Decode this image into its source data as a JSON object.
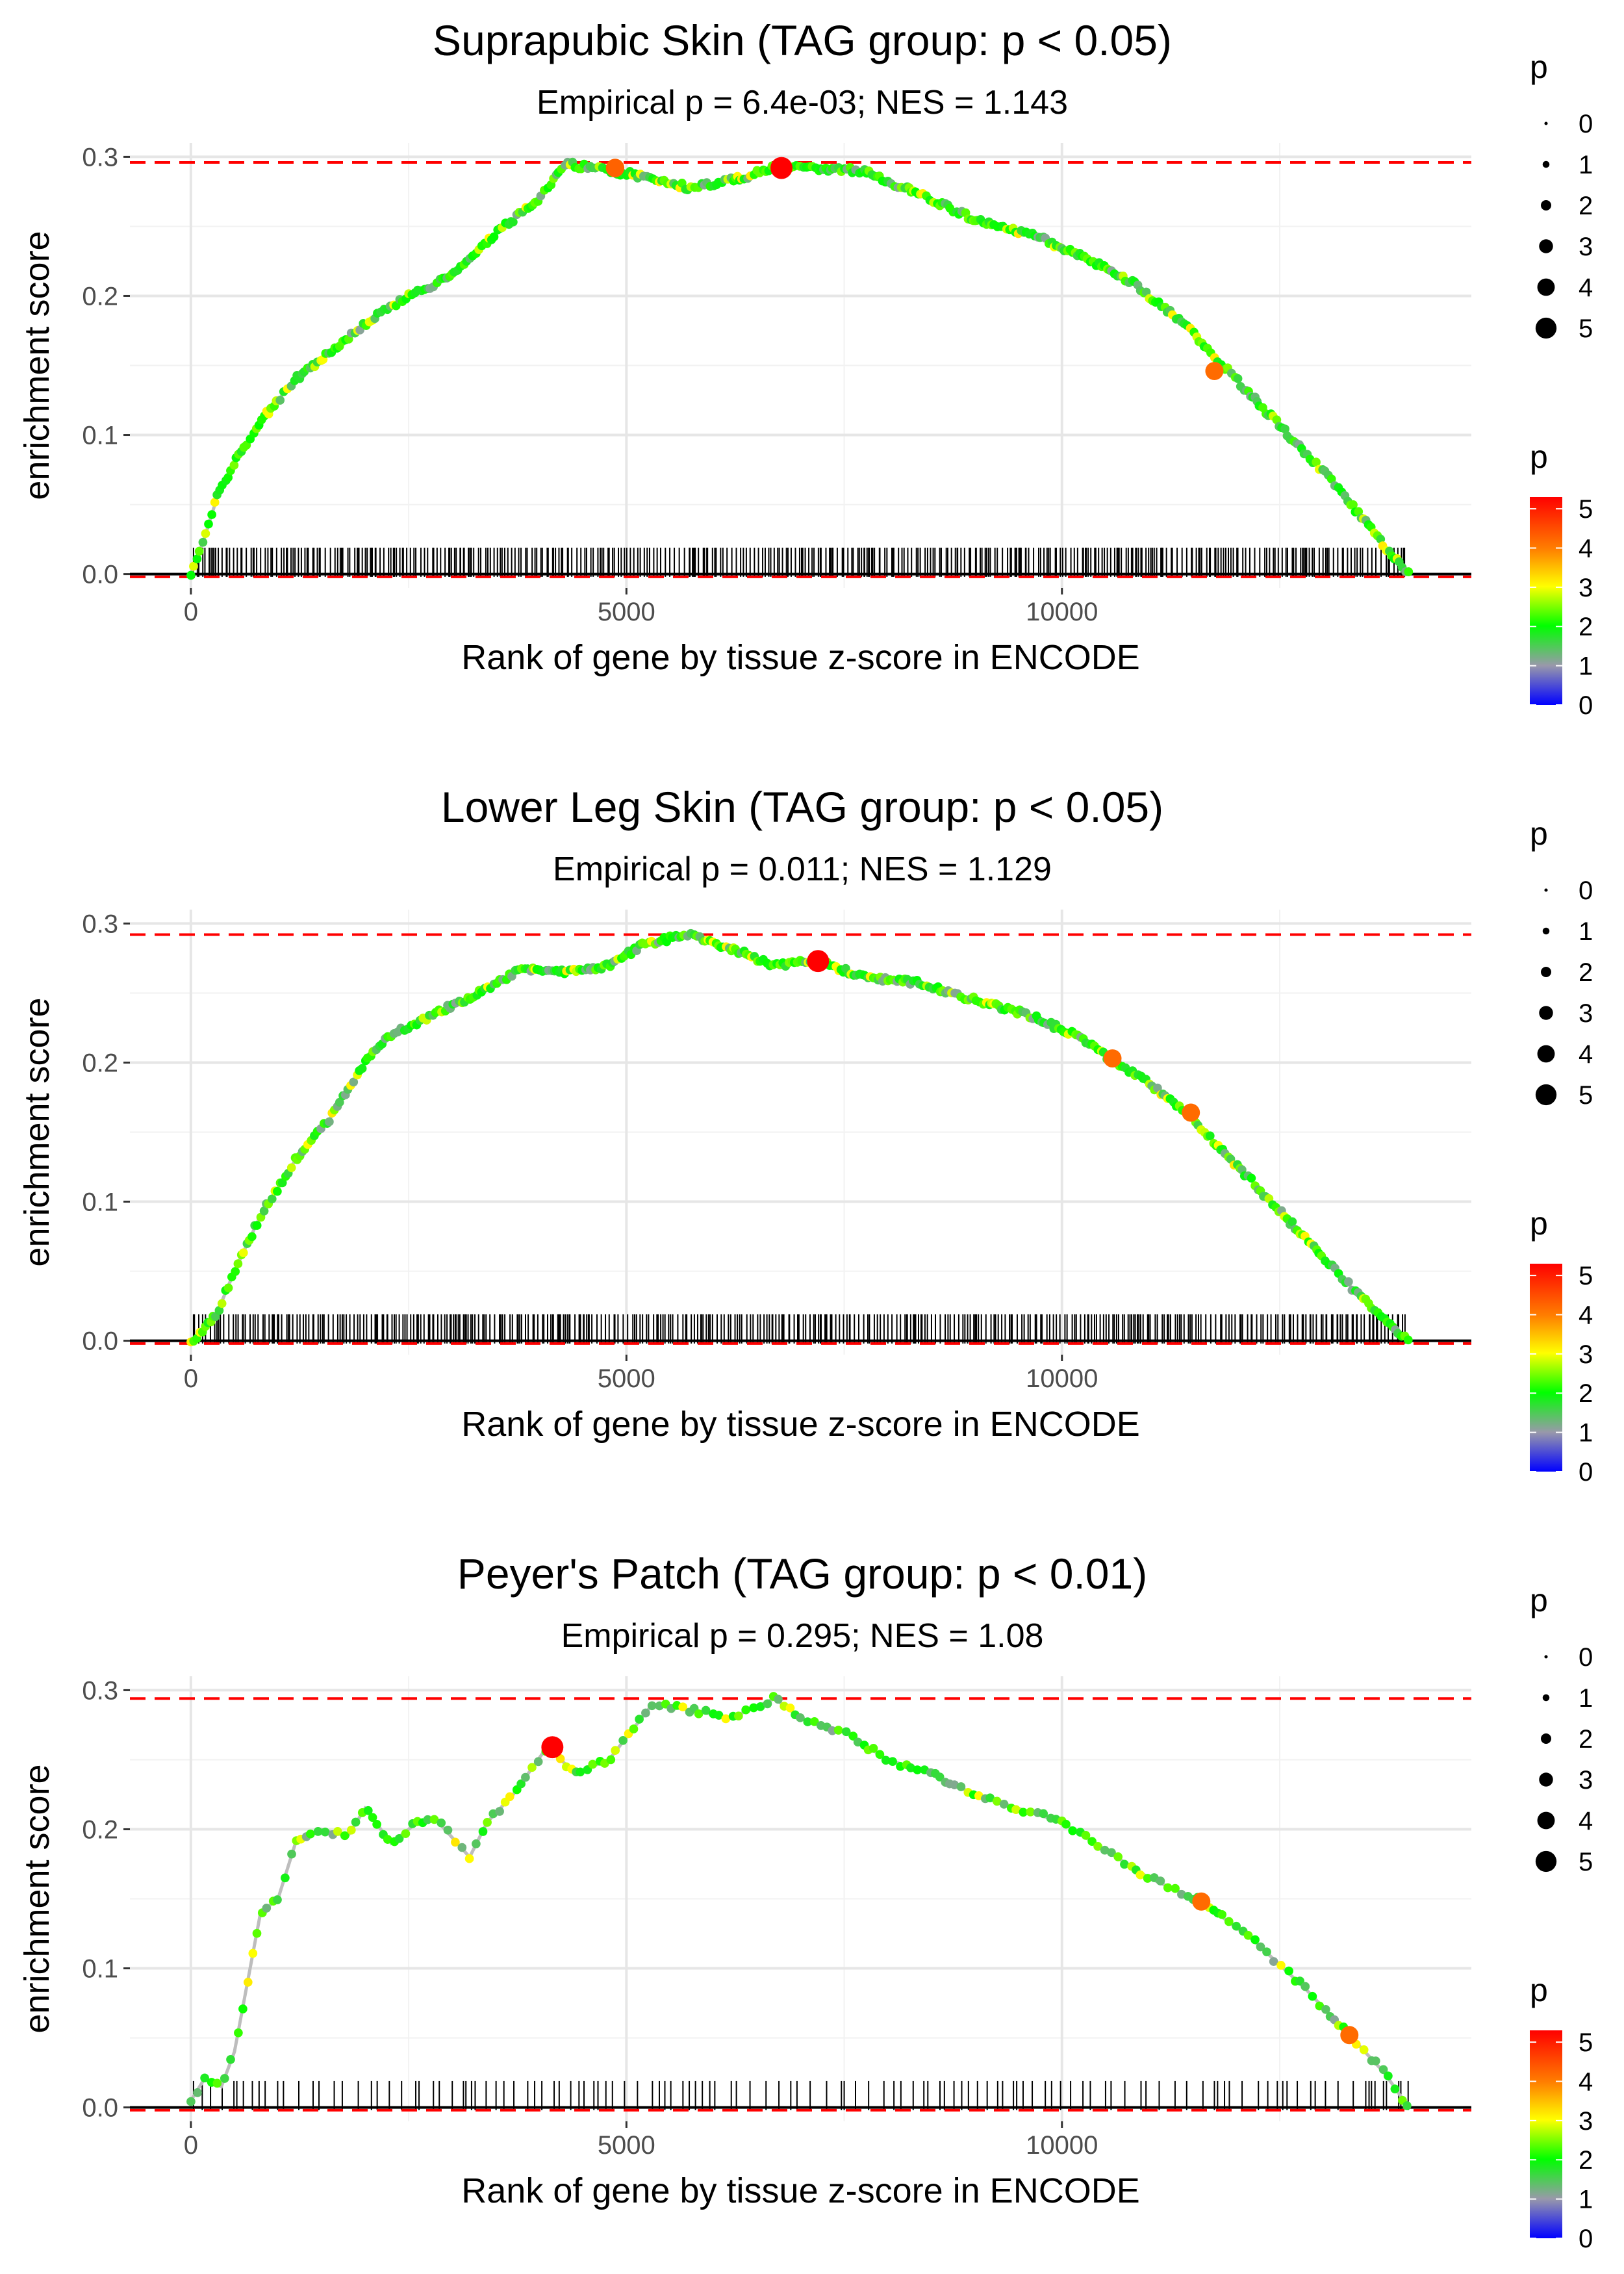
{
  "chart_data": [
    {
      "type": "line",
      "title": "Suprapubic Skin (TAG group: p < 0.05)",
      "subtitle": "Empirical p = 6.4e-03; NES = 1.143",
      "xlabel": "Rank of gene by tissue z-score in ENCODE",
      "ylabel": "enrichment score",
      "xlim": [
        -700,
        14700
      ],
      "ylim": [
        -0.01,
        0.31
      ],
      "xticks": [
        0,
        5000,
        10000
      ],
      "xtick_labels": [
        "0",
        "5000",
        "10000"
      ],
      "yticks": [
        0.0,
        0.1,
        0.2,
        0.3
      ],
      "ytick_labels": [
        "0.0",
        "0.1",
        "0.2",
        "0.3"
      ],
      "max_es": 0.296,
      "min_es": -0.002,
      "gene_count": 13980,
      "hit_density": "dense",
      "curve": [
        [
          0,
          0
        ],
        [
          150,
          0.025
        ],
        [
          300,
          0.055
        ],
        [
          500,
          0.08
        ],
        [
          800,
          0.11
        ],
        [
          1200,
          0.14
        ],
        [
          1600,
          0.16
        ],
        [
          2000,
          0.18
        ],
        [
          2500,
          0.2
        ],
        [
          3000,
          0.215
        ],
        [
          3500,
          0.245
        ],
        [
          4000,
          0.27
        ],
        [
          4300,
          0.295
        ],
        [
          4800,
          0.29
        ],
        [
          5300,
          0.285
        ],
        [
          5700,
          0.278
        ],
        [
          6200,
          0.283
        ],
        [
          6700,
          0.292
        ],
        [
          7200,
          0.292
        ],
        [
          7700,
          0.29
        ],
        [
          8300,
          0.275
        ],
        [
          9000,
          0.255
        ],
        [
          9600,
          0.245
        ],
        [
          10200,
          0.23
        ],
        [
          10800,
          0.21
        ],
        [
          11400,
          0.18
        ],
        [
          12000,
          0.14
        ],
        [
          12600,
          0.1
        ],
        [
          13200,
          0.06
        ],
        [
          13700,
          0.02
        ],
        [
          13980,
          0
        ]
      ],
      "highlighted_points": [
        {
          "x": 4870,
          "y": 0.292,
          "p": 4.3
        },
        {
          "x": 6780,
          "y": 0.292,
          "p": 5.3
        },
        {
          "x": 11750,
          "y": 0.146,
          "p": 4.2
        }
      ],
      "legend_size": {
        "title": "p",
        "labels": [
          "0",
          "1",
          "2",
          "3",
          "4",
          "5"
        ]
      },
      "legend_color": {
        "title": "p",
        "labels": [
          "0",
          "1",
          "2",
          "3",
          "4",
          "5"
        ],
        "colors": [
          "#0000ff",
          "#9999aa",
          "#00ff00",
          "#ffff00",
          "#ff7f00",
          "#ff0000"
        ]
      }
    },
    {
      "type": "line",
      "title": "Lower Leg Skin (TAG group: p < 0.05)",
      "subtitle": "Empirical p = 0.011; NES = 1.129",
      "xlabel": "Rank of gene by tissue z-score in ENCODE",
      "ylabel": "enrichment score",
      "xlim": [
        -700,
        14700
      ],
      "ylim": [
        -0.01,
        0.31
      ],
      "xticks": [
        0,
        5000,
        10000
      ],
      "xtick_labels": [
        "0",
        "5000",
        "10000"
      ],
      "yticks": [
        0.0,
        0.1,
        0.2,
        0.3
      ],
      "ytick_labels": [
        "0.0",
        "0.1",
        "0.2",
        "0.3"
      ],
      "max_es": 0.292,
      "min_es": -0.002,
      "gene_count": 13980,
      "hit_density": "dense",
      "curve": [
        [
          0,
          0
        ],
        [
          100,
          0.005
        ],
        [
          300,
          0.02
        ],
        [
          500,
          0.05
        ],
        [
          800,
          0.09
        ],
        [
          1200,
          0.13
        ],
        [
          1600,
          0.16
        ],
        [
          2000,
          0.2
        ],
        [
          2300,
          0.22
        ],
        [
          2800,
          0.235
        ],
        [
          3300,
          0.25
        ],
        [
          3800,
          0.268
        ],
        [
          4300,
          0.265
        ],
        [
          4800,
          0.27
        ],
        [
          5200,
          0.285
        ],
        [
          5700,
          0.292
        ],
        [
          6200,
          0.282
        ],
        [
          6700,
          0.27
        ],
        [
          7200,
          0.273
        ],
        [
          7700,
          0.262
        ],
        [
          8300,
          0.258
        ],
        [
          9000,
          0.245
        ],
        [
          9600,
          0.235
        ],
        [
          10200,
          0.218
        ],
        [
          10600,
          0.2
        ],
        [
          11000,
          0.185
        ],
        [
          11500,
          0.16
        ],
        [
          12100,
          0.12
        ],
        [
          12700,
          0.08
        ],
        [
          13300,
          0.04
        ],
        [
          13800,
          0.01
        ],
        [
          13980,
          0
        ]
      ],
      "highlighted_points": [
        {
          "x": 7200,
          "y": 0.273,
          "p": 5.3
        },
        {
          "x": 10580,
          "y": 0.203,
          "p": 4.2
        },
        {
          "x": 11480,
          "y": 0.164,
          "p": 4.2
        }
      ],
      "legend_size": {
        "title": "p",
        "labels": [
          "0",
          "1",
          "2",
          "3",
          "4",
          "5"
        ]
      },
      "legend_color": {
        "title": "p",
        "labels": [
          "0",
          "1",
          "2",
          "3",
          "4",
          "5"
        ],
        "colors": [
          "#0000ff",
          "#9999aa",
          "#00ff00",
          "#ffff00",
          "#ff7f00",
          "#ff0000"
        ]
      }
    },
    {
      "type": "line",
      "title": "Peyer's Patch (TAG group: p < 0.01)",
      "subtitle": "Empirical p = 0.295; NES = 1.08",
      "xlabel": "Rank of gene by tissue z-score in ENCODE",
      "ylabel": "enrichment score",
      "xlim": [
        -700,
        14700
      ],
      "ylim": [
        -0.01,
        0.31
      ],
      "xticks": [
        0,
        5000,
        10000
      ],
      "xtick_labels": [
        "0",
        "5000",
        "10000"
      ],
      "yticks": [
        0.0,
        0.1,
        0.2,
        0.3
      ],
      "ytick_labels": [
        "0.0",
        "0.1",
        "0.2",
        "0.3"
      ],
      "max_es": 0.294,
      "min_es": -0.002,
      "gene_count": 13980,
      "hit_density": "sparse",
      "curve": [
        [
          0,
          0.005
        ],
        [
          150,
          0.02
        ],
        [
          350,
          0.015
        ],
        [
          500,
          0.04
        ],
        [
          650,
          0.09
        ],
        [
          800,
          0.14
        ],
        [
          1000,
          0.15
        ],
        [
          1200,
          0.19
        ],
        [
          1500,
          0.2
        ],
        [
          1800,
          0.195
        ],
        [
          2000,
          0.215
        ],
        [
          2300,
          0.19
        ],
        [
          2600,
          0.205
        ],
        [
          2800,
          0.208
        ],
        [
          3200,
          0.18
        ],
        [
          3400,
          0.205
        ],
        [
          3700,
          0.225
        ],
        [
          4100,
          0.26
        ],
        [
          4400,
          0.24
        ],
        [
          4800,
          0.25
        ],
        [
          5300,
          0.29
        ],
        [
          5800,
          0.285
        ],
        [
          6200,
          0.28
        ],
        [
          6700,
          0.294
        ],
        [
          7000,
          0.28
        ],
        [
          7500,
          0.27
        ],
        [
          8000,
          0.25
        ],
        [
          8500,
          0.24
        ],
        [
          9000,
          0.225
        ],
        [
          9500,
          0.215
        ],
        [
          10000,
          0.205
        ],
        [
          10500,
          0.185
        ],
        [
          11000,
          0.165
        ],
        [
          11600,
          0.148
        ],
        [
          12200,
          0.12
        ],
        [
          12800,
          0.085
        ],
        [
          13300,
          0.052
        ],
        [
          13700,
          0.025
        ],
        [
          13980,
          0
        ]
      ],
      "highlighted_points": [
        {
          "x": 4150,
          "y": 0.259,
          "p": 5.3
        },
        {
          "x": 11600,
          "y": 0.148,
          "p": 4.2
        },
        {
          "x": 13300,
          "y": 0.052,
          "p": 4.2
        }
      ],
      "legend_size": {
        "title": "p",
        "labels": [
          "0",
          "1",
          "2",
          "3",
          "4",
          "5"
        ]
      },
      "legend_color": {
        "title": "p",
        "labels": [
          "0",
          "1",
          "2",
          "3",
          "4",
          "5"
        ],
        "colors": [
          "#0000ff",
          "#9999aa",
          "#00ff00",
          "#ffff00",
          "#ff7f00",
          "#ff0000"
        ]
      }
    }
  ]
}
